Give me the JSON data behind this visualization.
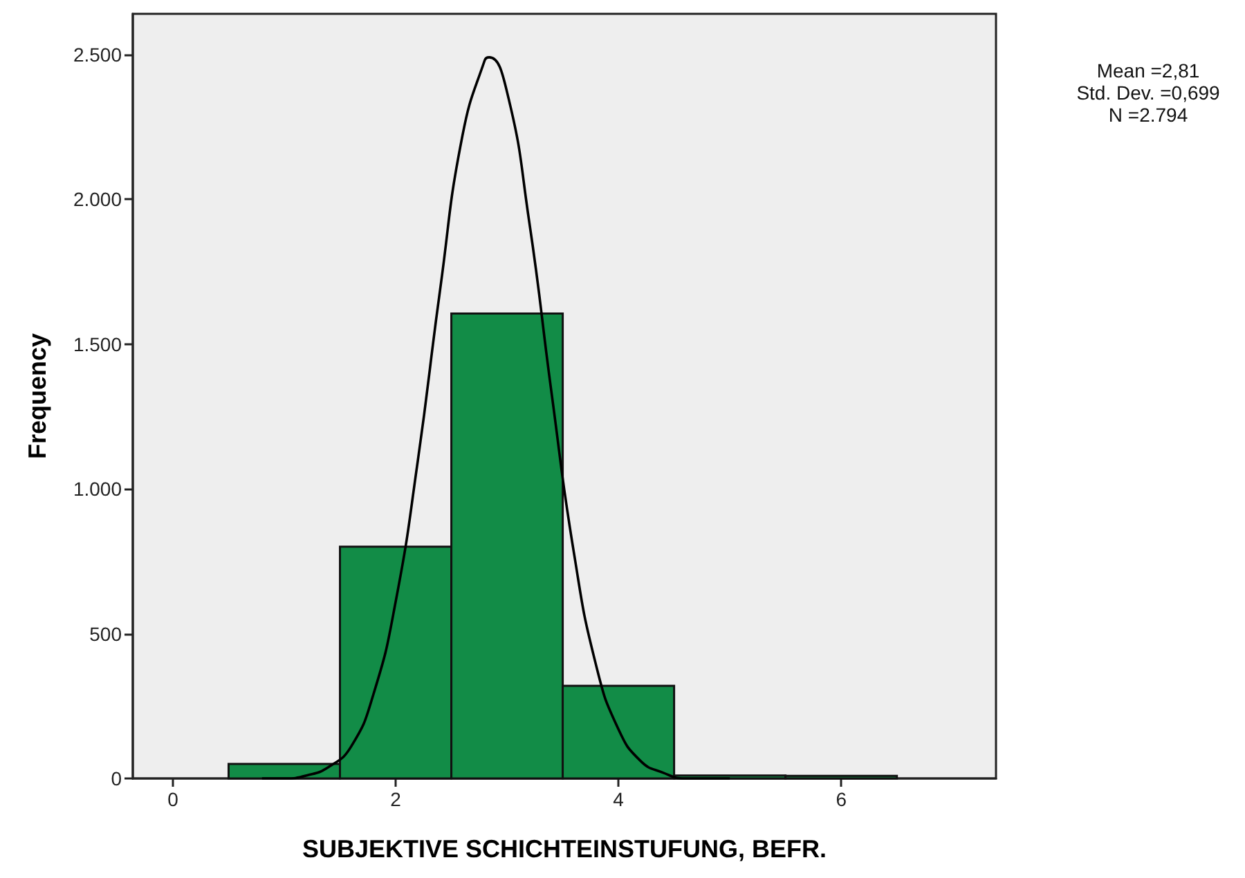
{
  "chart_data": {
    "type": "histogram",
    "xlabel": "SUBJEKTIVE SCHICHTEINSTUFUNG, BEFR.",
    "ylabel": "Frequency",
    "annotations": [
      "Mean =2,81",
      "Std. Dev. =0,699",
      "N =2.794"
    ],
    "bins": [
      0.5,
      1.5,
      2.5,
      3.5,
      4.5,
      5.5,
      6.5
    ],
    "series": [
      {
        "color": "#128c47",
        "values": [
          50,
          800,
          1605,
          320,
          10,
          9
        ]
      },
      {
        "type": "line",
        "color": "#000000",
        "x": [
          0.8,
          1.0,
          1.2,
          1.4,
          1.6,
          1.8,
          2.0,
          2.2,
          2.4,
          2.6,
          2.8,
          2.84,
          3.0,
          3.2,
          3.4,
          3.6,
          3.8,
          4.0,
          4.2,
          4.4,
          4.6,
          4.8,
          5.0
        ],
        "values": [
          0,
          0,
          10,
          40,
          110,
          290,
          610,
          1100,
          1690,
          2220,
          2480,
          2490,
          2370,
          1920,
          1330,
          780,
          390,
          170,
          60,
          20,
          0,
          0,
          0
        ]
      }
    ],
    "xlim": [
      -0.36,
      7.39
    ],
    "xticks": [
      0,
      2,
      4,
      6
    ],
    "ylim": [
      0,
      2640
    ],
    "yticks": [
      0,
      500,
      {
        "value": 1000,
        "label": "1.000"
      },
      {
        "value": 1500,
        "label": "1.500"
      },
      {
        "value": 2000,
        "label": "2.000"
      },
      {
        "value": 2500,
        "label": "2.500"
      }
    ],
    "grid": false,
    "marker": "none",
    "line_style": "solid"
  }
}
